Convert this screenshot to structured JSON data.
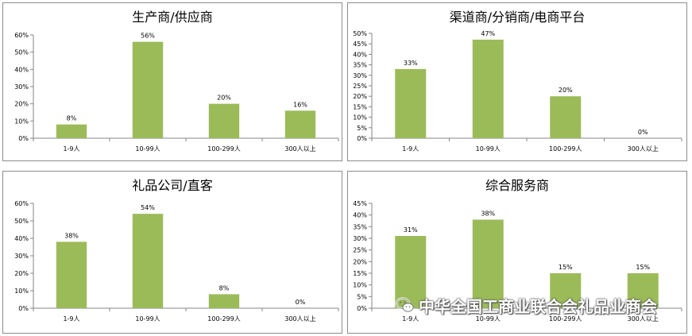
{
  "chart_data": [
    {
      "type": "bar",
      "title": "生产商/供应商",
      "categories": [
        "1-9人",
        "10-99人",
        "100-299人",
        "300人以上"
      ],
      "values": [
        8,
        56,
        20,
        16
      ],
      "value_labels": [
        "8%",
        "56%",
        "20%",
        "16%"
      ],
      "ylim": [
        0,
        60
      ],
      "yticks": [
        "0%",
        "10%",
        "20%",
        "30%",
        "40%",
        "50%",
        "60%"
      ],
      "ytick_values": [
        0,
        10,
        20,
        30,
        40,
        50,
        60
      ],
      "grid": false
    },
    {
      "type": "bar",
      "title": "渠道商/分销商/电商平台",
      "categories": [
        "1-9人",
        "10-99人",
        "100-299人",
        "300人以上"
      ],
      "values": [
        33,
        47,
        20,
        0
      ],
      "value_labels": [
        "33%",
        "47%",
        "20%",
        "0%"
      ],
      "ylim": [
        0,
        50
      ],
      "yticks": [
        "0%",
        "5%",
        "10%",
        "15%",
        "20%",
        "25%",
        "30%",
        "35%",
        "40%",
        "45%",
        "50%"
      ],
      "ytick_values": [
        0,
        5,
        10,
        15,
        20,
        25,
        30,
        35,
        40,
        45,
        50
      ],
      "grid": false
    },
    {
      "type": "bar",
      "title": "礼品公司/直客",
      "categories": [
        "1-9人",
        "10-99人",
        "100-299人",
        "300人以上"
      ],
      "values": [
        38,
        54,
        8,
        0
      ],
      "value_labels": [
        "38%",
        "54%",
        "8%",
        "0%"
      ],
      "ylim": [
        0,
        60
      ],
      "yticks": [
        "0%",
        "10%",
        "20%",
        "30%",
        "40%",
        "50%",
        "60%"
      ],
      "ytick_values": [
        0,
        10,
        20,
        30,
        40,
        50,
        60
      ],
      "grid": false
    },
    {
      "type": "bar",
      "title": "综合服务商",
      "categories": [
        "1-9人",
        "10-99人",
        "100-299人",
        "300人以上"
      ],
      "values": [
        31,
        38,
        15,
        15
      ],
      "value_labels": [
        "31%",
        "38%",
        "15%",
        "15%"
      ],
      "ylim": [
        0,
        45
      ],
      "yticks": [
        "0%",
        "5%",
        "10%",
        "15%",
        "20%",
        "25%",
        "30%",
        "35%",
        "40%",
        "45%"
      ],
      "ytick_values": [
        0,
        5,
        10,
        15,
        20,
        25,
        30,
        35,
        40,
        45
      ],
      "grid": false
    }
  ],
  "colors": {
    "bar": "#9bbb59",
    "axis": "#868686",
    "text": "#000000"
  },
  "watermark": {
    "text": "中华全国工商业联合会礼品业商会",
    "icon": "wechat-icon"
  }
}
